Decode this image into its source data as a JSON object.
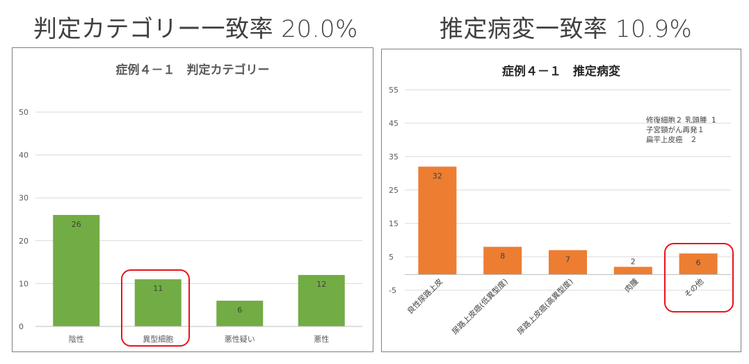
{
  "headlines": {
    "left": "判定カテゴリー一致率 20.0%",
    "right": "推定病変一致率  10.9%"
  },
  "chart_data": [
    {
      "type": "bar",
      "title": "症例４－１　判定カテゴリー",
      "categories": [
        "陰性",
        "異型細胞",
        "悪性疑い",
        "悪性"
      ],
      "values": [
        26,
        11,
        6,
        12
      ],
      "data_labels": [
        "26",
        "11",
        "6",
        "12"
      ],
      "ylim": [
        0,
        50
      ],
      "yticks": [
        0,
        10,
        20,
        30,
        40,
        50
      ],
      "ytick_labels": [
        "0",
        "10",
        "20",
        "30",
        "40",
        "50"
      ],
      "grid": true,
      "bar_color": "#72ac45",
      "highlight_category": "異型細胞"
    },
    {
      "type": "bar",
      "title": "症例４－１　推定病変",
      "categories": [
        "良性尿路上皮",
        "尿路上皮癌(低異型度)",
        "尿路上皮癌(高異型度)",
        "肉腫",
        "その他"
      ],
      "values": [
        32,
        8,
        7,
        2,
        6
      ],
      "data_labels": [
        "32",
        "8",
        "7",
        "2",
        "6"
      ],
      "ylim": [
        -5,
        55
      ],
      "yticks": [
        -5,
        5,
        15,
        25,
        35,
        45,
        55
      ],
      "ytick_labels": [
        "-5",
        "5",
        "15",
        "25",
        "35",
        "45",
        "55"
      ],
      "grid": true,
      "bar_color": "#ed7d31",
      "annotation": "修復細胞２ 乳頭腫  1\n子宮頸がん再発１\n扁平上皮癌　２",
      "highlight_category": "その他"
    }
  ],
  "colors": {
    "highlight": "#e8141a",
    "grid": "#d9d9d9",
    "axis": "#bfbfbf"
  }
}
